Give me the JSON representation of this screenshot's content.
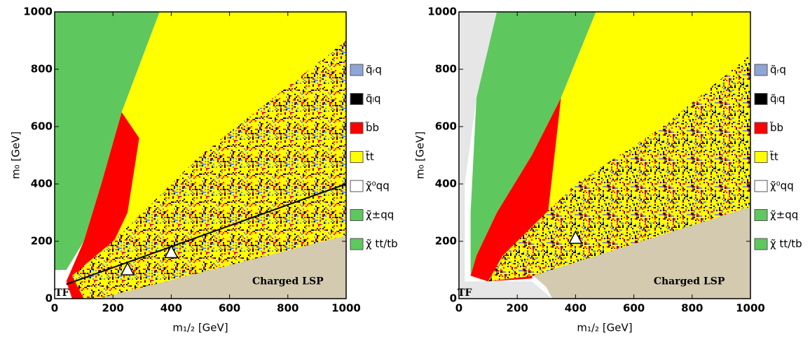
{
  "chart_data": [
    {
      "type": "region",
      "xlabel": "m₁/₂ [GeV]",
      "ylabel": "m₀ [GeV]",
      "xlim": [
        0,
        1000
      ],
      "ylim": [
        0,
        1000
      ],
      "xticks": [
        0,
        200,
        400,
        600,
        800,
        1000
      ],
      "yticks": [
        0,
        200,
        400,
        600,
        800,
        1000
      ],
      "regions": [
        {
          "color": "#5ec85e",
          "x": [
            0,
            360,
            230,
            160,
            100,
            40,
            0
          ],
          "y": [
            1000,
            1000,
            650,
            400,
            200,
            100,
            100
          ]
        },
        {
          "color": "#ffff00",
          "x": [
            360,
            1000,
            1000,
            150,
            100,
            40,
            100,
            160,
            230
          ],
          "y": [
            1000,
            1000,
            220,
            0,
            0,
            60,
            200,
            400,
            650
          ]
        },
        {
          "color": "#ff0000",
          "x": [
            230,
            290,
            250,
            180,
            120,
            60,
            40,
            100,
            160
          ],
          "y": [
            650,
            560,
            300,
            150,
            0,
            0,
            60,
            200,
            400
          ]
        },
        {
          "color": [
            "#ffff00",
            "#000000",
            "#ff0000",
            "#6f8fcf"
          ],
          "x": [
            1000,
            1000,
            150,
            100,
            60,
            200,
            500
          ],
          "y": [
            900,
            220,
            0,
            0,
            80,
            200,
            500
          ]
        },
        {
          "color": "#d3cab0",
          "x": [
            150,
            1000,
            1000
          ],
          "y": [
            0,
            220,
            0
          ]
        }
      ],
      "line": {
        "color": "#000000",
        "x": [
          40,
          1000
        ],
        "y": [
          50,
          400
        ]
      },
      "points": {
        "x": [
          250,
          400
        ],
        "y": [
          100,
          160
        ]
      },
      "annotations": [
        {
          "text": "Charged LSP",
          "x": 800,
          "y": 60
        },
        {
          "text": "TF",
          "x": 25,
          "y": 20
        }
      ],
      "legend": [
        {
          "name": "q̃ᵣq",
          "color": "#8fa5d6"
        },
        {
          "name": "q̃ₗq",
          "color": "#000000"
        },
        {
          "name": "b̃b",
          "color": "#ff0000"
        },
        {
          "name": "t̃t",
          "color": "#ffff00"
        },
        {
          "name": "χ̃⁰qq",
          "color": "#ffffff"
        },
        {
          "name": "χ̃±qq",
          "color": "#5ec85e"
        },
        {
          "name": "χ̃ tt/tb",
          "color": "#5ec85e"
        }
      ]
    },
    {
      "type": "region",
      "xlabel": "m₁/₂ [GeV]",
      "ylabel": "m₀ [GeV]",
      "xlim": [
        0,
        1000
      ],
      "ylim": [
        0,
        1000
      ],
      "xticks": [
        0,
        200,
        400,
        600,
        800,
        1000
      ],
      "yticks": [
        0,
        200,
        400,
        600,
        800,
        1000
      ],
      "regions": [
        {
          "color": "#e6e6e6",
          "x": [
            0,
            130,
            60,
            20,
            20,
            60,
            250,
            320,
            0
          ],
          "y": [
            1000,
            1000,
            700,
            400,
            60,
            60,
            60,
            0,
            0
          ]
        },
        {
          "color": "#5ec85e",
          "x": [
            130,
            470,
            350,
            250,
            130,
            60,
            40,
            40,
            60
          ],
          "y": [
            1000,
            1000,
            700,
            500,
            300,
            150,
            80,
            300,
            700
          ]
        },
        {
          "color": "#ffff00",
          "x": [
            470,
            1000,
            1000,
            255,
            100,
            40,
            60,
            130,
            250,
            350
          ],
          "y": [
            1000,
            1000,
            320,
            80,
            60,
            80,
            150,
            300,
            500,
            700
          ]
        },
        {
          "color": "#ff0000",
          "x": [
            350,
            250,
            130,
            60,
            40,
            100,
            250,
            300
          ],
          "y": [
            700,
            500,
            300,
            150,
            80,
            60,
            70,
            250
          ]
        },
        {
          "color": [
            "#ffff00",
            "#000000",
            "#ff0000",
            "#6f8fcf"
          ],
          "x": [
            1000,
            1000,
            255,
            100,
            150,
            400,
            700
          ],
          "y": [
            850,
            320,
            80,
            60,
            150,
            400,
            600
          ]
        },
        {
          "color": "#d3cab0",
          "x": [
            255,
            1000,
            1000,
            320,
            300
          ],
          "y": [
            80,
            320,
            0,
            0,
            40
          ]
        }
      ],
      "points": {
        "x": [
          400
        ],
        "y": [
          210
        ]
      },
      "annotations": [
        {
          "text": "Charged LSP",
          "x": 790,
          "y": 60
        },
        {
          "text": "TF",
          "x": 20,
          "y": 20
        }
      ],
      "legend": [
        {
          "name": "q̃ᵣq",
          "color": "#8fa5d6"
        },
        {
          "name": "q̃ₗq",
          "color": "#000000"
        },
        {
          "name": "b̃b",
          "color": "#ff0000"
        },
        {
          "name": "t̃t",
          "color": "#ffff00"
        },
        {
          "name": "χ̃⁰qq",
          "color": "#ffffff"
        },
        {
          "name": "χ̃±qq",
          "color": "#5ec85e"
        },
        {
          "name": "χ̃ tt/tb",
          "color": "#5ec85e"
        }
      ]
    }
  ]
}
